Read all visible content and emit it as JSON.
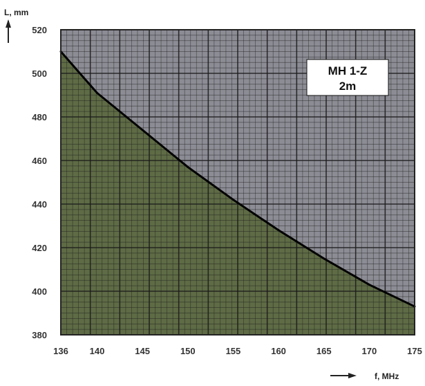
{
  "chart_data": {
    "type": "line",
    "title": "",
    "xlabel": "f, MHz",
    "ylabel": "L, mm",
    "annotation": [
      "MH 1-Z",
      "2m"
    ],
    "xlim": [
      136,
      175
    ],
    "ylim": [
      380,
      520
    ],
    "x_ticks": [
      136,
      140,
      145,
      150,
      155,
      160,
      165,
      170,
      175
    ],
    "x_tick_labels": [
      "136",
      "140",
      "145",
      "150",
      "155",
      "160",
      "165",
      "170",
      "175"
    ],
    "y_ticks": [
      380,
      400,
      420,
      440,
      460,
      480,
      500,
      520
    ],
    "y_tick_labels": [
      "380",
      "400",
      "420",
      "440",
      "460",
      "480",
      "500",
      "520"
    ],
    "grid": true,
    "series": [
      {
        "x": [
          136,
          140,
          145,
          150,
          155,
          160,
          165,
          170,
          175
        ],
        "y": [
          510,
          491,
          474,
          457,
          442,
          428,
          415,
          403,
          393
        ]
      }
    ],
    "colors": {
      "below_curve_fill": "#5e6b45",
      "above_curve_fill": "#8c8c95",
      "grid_line": "#1a1a1a",
      "curve": "#000000",
      "text": "#333333"
    }
  }
}
